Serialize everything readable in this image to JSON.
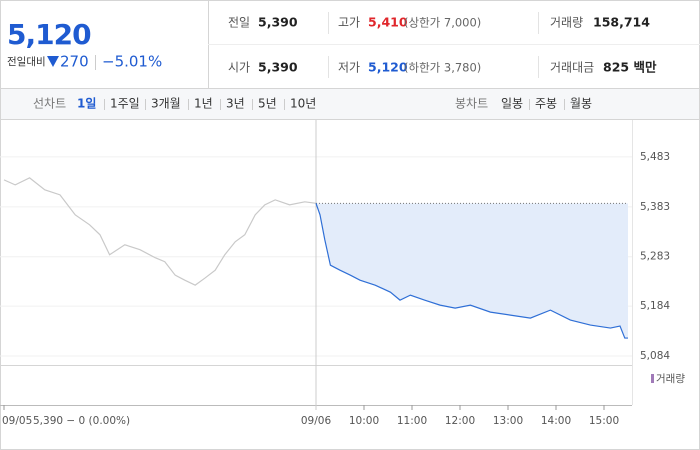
{
  "summary": {
    "price": "5,120",
    "change_label": "전일대비",
    "change": "270",
    "change_rate": "−5.01%"
  },
  "stats": [
    {
      "label": "전일",
      "value": "5,390"
    },
    {
      "label": "고가",
      "value": "5,410",
      "note": "(상한가 7,000)"
    },
    {
      "label": "거래량",
      "value": "158,714"
    },
    {
      "label": "시가",
      "value": "5,390"
    },
    {
      "label": "저가",
      "value": "5,120",
      "note": "(하한가 3,780)"
    },
    {
      "label": "거래대금",
      "value": "825 백만"
    }
  ],
  "toolbar": {
    "line_label": "선차트",
    "periods": [
      "1일",
      "1주일",
      "3개월",
      "1년",
      "3년",
      "5년",
      "10년"
    ],
    "candle_label": "봉차트",
    "candles": [
      "일봉",
      "주봉",
      "월봉"
    ]
  },
  "chart_data": {
    "type": "line",
    "series": [
      {
        "color": "#c9c9c9",
        "x": [
          -390,
          -376,
          -358,
          -339,
          -320,
          -301,
          -283,
          -270,
          -258,
          -239,
          -220,
          -201,
          -189,
          -176,
          -164,
          -151,
          -139,
          -126,
          -114,
          -101,
          -89,
          -76,
          -64,
          -51,
          -33,
          -14,
          0
        ],
        "values": [
          5437,
          5427,
          5441,
          5417,
          5407,
          5367,
          5347,
          5327,
          5287,
          5307,
          5297,
          5281,
          5273,
          5246,
          5236,
          5226,
          5240,
          5256,
          5287,
          5313,
          5327,
          5367,
          5387,
          5397,
          5387,
          5393,
          5390
        ]
      },
      {
        "color": "#2f6fd6",
        "area_color": "#e3ecfa",
        "x": [
          0,
          5,
          11,
          18,
          30,
          43,
          55,
          74,
          93,
          105,
          118,
          136,
          155,
          174,
          193,
          218,
          243,
          268,
          293,
          318,
          343,
          368,
          380,
          386,
          390
        ],
        "values": [
          5390,
          5367,
          5317,
          5266,
          5256,
          5246,
          5236,
          5226,
          5212,
          5196,
          5206,
          5196,
          5186,
          5180,
          5186,
          5172,
          5166,
          5160,
          5176,
          5156,
          5146,
          5140,
          5144,
          5120,
          5120
        ]
      }
    ],
    "baseline": 5390,
    "xlim": [
      -395,
      395
    ],
    "xticks": [
      {
        "value": -390,
        "label": "09/05"
      },
      {
        "value": 0,
        "label": "09/06"
      },
      {
        "value": 60,
        "label": "10:00"
      },
      {
        "value": 120,
        "label": "11:00"
      },
      {
        "value": 180,
        "label": "12:00"
      },
      {
        "value": 240,
        "label": "13:00"
      },
      {
        "value": 300,
        "label": "14:00"
      },
      {
        "value": 360,
        "label": "15:00"
      }
    ],
    "ylim": [
      5066,
      5557
    ],
    "yticks": [
      {
        "value": 5084,
        "label": "5,084"
      },
      {
        "value": 5184,
        "label": "5,184"
      },
      {
        "value": 5283,
        "label": "5,283"
      },
      {
        "value": 5383,
        "label": "5,383"
      },
      {
        "value": 5483,
        "label": "5,483"
      }
    ],
    "grid": true,
    "readout": "5,390 − 0 (0.00%)",
    "volume_label": "거래량"
  }
}
